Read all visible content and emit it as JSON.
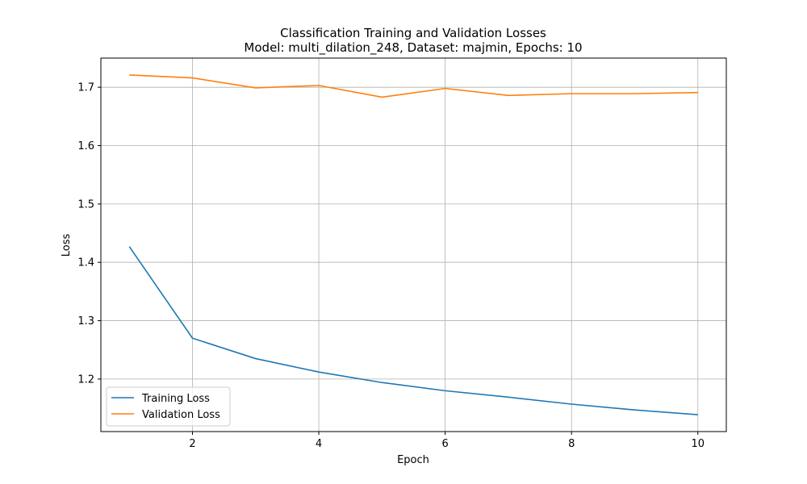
{
  "chart_data": {
    "type": "line",
    "title": "Classification Training and Validation Losses",
    "subtitle": "Model: multi_dilation_248, Dataset: majmin, Epochs: 10",
    "xlabel": "Epoch",
    "ylabel": "Loss",
    "x": [
      1,
      2,
      3,
      4,
      5,
      6,
      7,
      8,
      9,
      10
    ],
    "xlim": [
      0.55,
      10.45
    ],
    "ylim": [
      1.11,
      1.75
    ],
    "xticks": [
      2,
      4,
      6,
      8,
      10
    ],
    "xtick_labels": [
      "2",
      "4",
      "6",
      "8",
      "10"
    ],
    "yticks": [
      1.2,
      1.3,
      1.4,
      1.5,
      1.6,
      1.7
    ],
    "ytick_labels": [
      "1.2",
      "1.3",
      "1.4",
      "1.5",
      "1.6",
      "1.7"
    ],
    "grid": true,
    "legend_position": "lower-left",
    "series": [
      {
        "name": "Training Loss",
        "color": "#1f77b4",
        "values": [
          1.427,
          1.27,
          1.235,
          1.212,
          1.194,
          1.18,
          1.169,
          1.157,
          1.147,
          1.139
        ]
      },
      {
        "name": "Validation Loss",
        "color": "#ff7f0e",
        "values": [
          1.721,
          1.716,
          1.699,
          1.703,
          1.683,
          1.698,
          1.686,
          1.689,
          1.689,
          1.691
        ]
      }
    ]
  }
}
